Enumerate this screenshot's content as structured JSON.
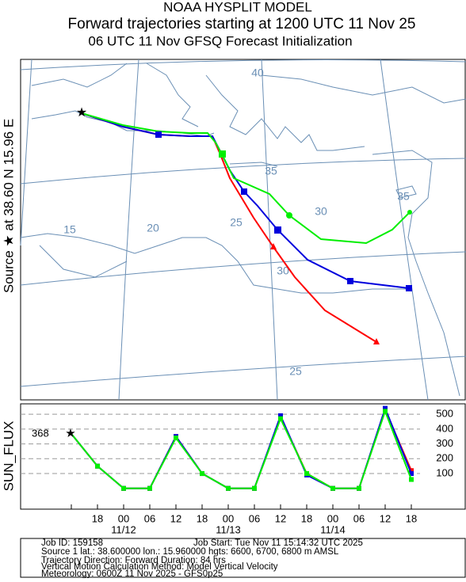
{
  "header": {
    "line1": "NOAA HYSPLIT MODEL",
    "line2": "Forward trajectories starting at 1200 UTC 11 Nov 25",
    "line3": "06 UTC 11 Nov    GFSQ  Forecast Initialization"
  },
  "map": {
    "side_label": "Source ★ at  38.60 N  15.96 E",
    "grid_labels": [
      "40",
      "35",
      "30",
      "25",
      "15",
      "20",
      "25",
      "30",
      "35"
    ]
  },
  "chart_data": {
    "type": "line",
    "y_axis_label": "SUN_FLUX",
    "start_value_label": "368",
    "categories": [
      null,
      "18",
      "00",
      "06",
      "12",
      "18",
      "00",
      "06",
      "12",
      "18",
      "00",
      "06",
      "12",
      "18"
    ],
    "date_labels": [
      "11/12",
      "11/13",
      "11/14"
    ],
    "series": [
      {
        "color": "#ff0000",
        "values": [
          368,
          150,
          0,
          0,
          350,
          100,
          0,
          0,
          480,
          100,
          0,
          0,
          530,
          120
        ]
      },
      {
        "color": "#0000dd",
        "values": [
          368,
          150,
          0,
          0,
          350,
          100,
          0,
          0,
          490,
          90,
          0,
          0,
          540,
          100
        ]
      },
      {
        "color": "#00ee00",
        "values": [
          368,
          150,
          0,
          0,
          340,
          100,
          0,
          0,
          470,
          100,
          0,
          0,
          520,
          60
        ]
      }
    ],
    "ylim": [
      -140,
      570
    ],
    "yticks": [
      100,
      200,
      300,
      400,
      500
    ],
    "grid": true
  },
  "footer": {
    "job_id": "Job ID: 159158",
    "job_start": "Job Start: Tue Nov 11 15:14:32 UTC 2025",
    "source": "Source 1 lat.: 38.600000  lon.: 15.960000  hgts: 6600, 6700, 6800 m AMSL",
    "direction": "Trajectory Direction: Forward      Duration: 84 hrs",
    "vertical": "Vertical Motion Calculation Method:       Model Vertical Velocity",
    "meteorology": "Meteorology: 0600Z 11 Nov 2025 - GFS0p25"
  }
}
